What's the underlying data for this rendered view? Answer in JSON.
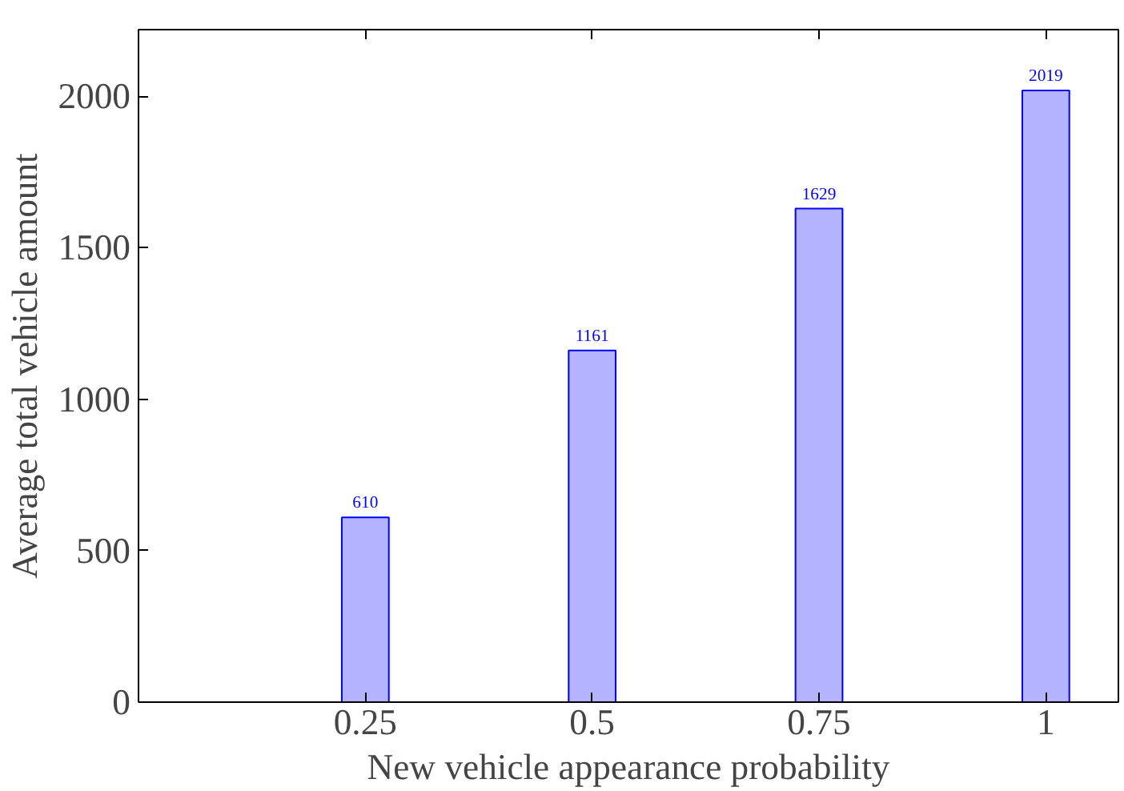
{
  "chart_data": {
    "type": "bar",
    "xlabel": "New vehicle appearance probability",
    "ylabel": "Average total vehicle amount",
    "x": [
      0.25,
      0.5,
      0.75,
      1
    ],
    "series": [
      {
        "color": "#b3b3ff",
        "values": [
          610,
          1161,
          1629,
          2019
        ]
      }
    ],
    "xlim": [
      0,
      1.08
    ],
    "ylim": [
      0,
      2220
    ],
    "xticks": [
      0.25,
      0.5,
      0.75,
      1
    ],
    "yticks": [
      0,
      500,
      1000,
      1500,
      2000
    ],
    "data_labels": true,
    "grid": false
  }
}
